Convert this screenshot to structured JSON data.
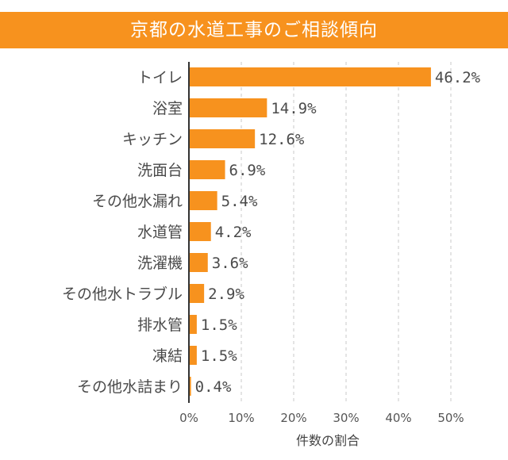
{
  "chart_data": {
    "type": "bar",
    "orientation": "horizontal",
    "title": "京都の水道工事のご相談傾向",
    "categories": [
      "トイレ",
      "浴室",
      "キッチン",
      "洗面台",
      "その他水漏れ",
      "水道管",
      "洗濯機",
      "その他水トラブル",
      "排水管",
      "凍結",
      "その他水詰まり"
    ],
    "values": [
      46.2,
      14.9,
      12.6,
      6.9,
      5.4,
      4.2,
      3.6,
      2.9,
      1.5,
      1.5,
      0.4
    ],
    "value_labels": [
      "46.2%",
      "14.9%",
      "12.6%",
      "6.9%",
      "5.4%",
      "4.2%",
      "3.6%",
      "2.9%",
      "1.5%",
      "1.5%",
      "0.4%"
    ],
    "xlim": [
      0,
      50
    ],
    "xticks": [
      0,
      10,
      20,
      30,
      40,
      50
    ],
    "xtick_labels": [
      "0%",
      "10%",
      "20%",
      "30%",
      "40%",
      "50%"
    ],
    "xlabel": "件数の割合",
    "ylabel": "",
    "grid": "vertical dashed",
    "bar_color": "#f7921e"
  }
}
